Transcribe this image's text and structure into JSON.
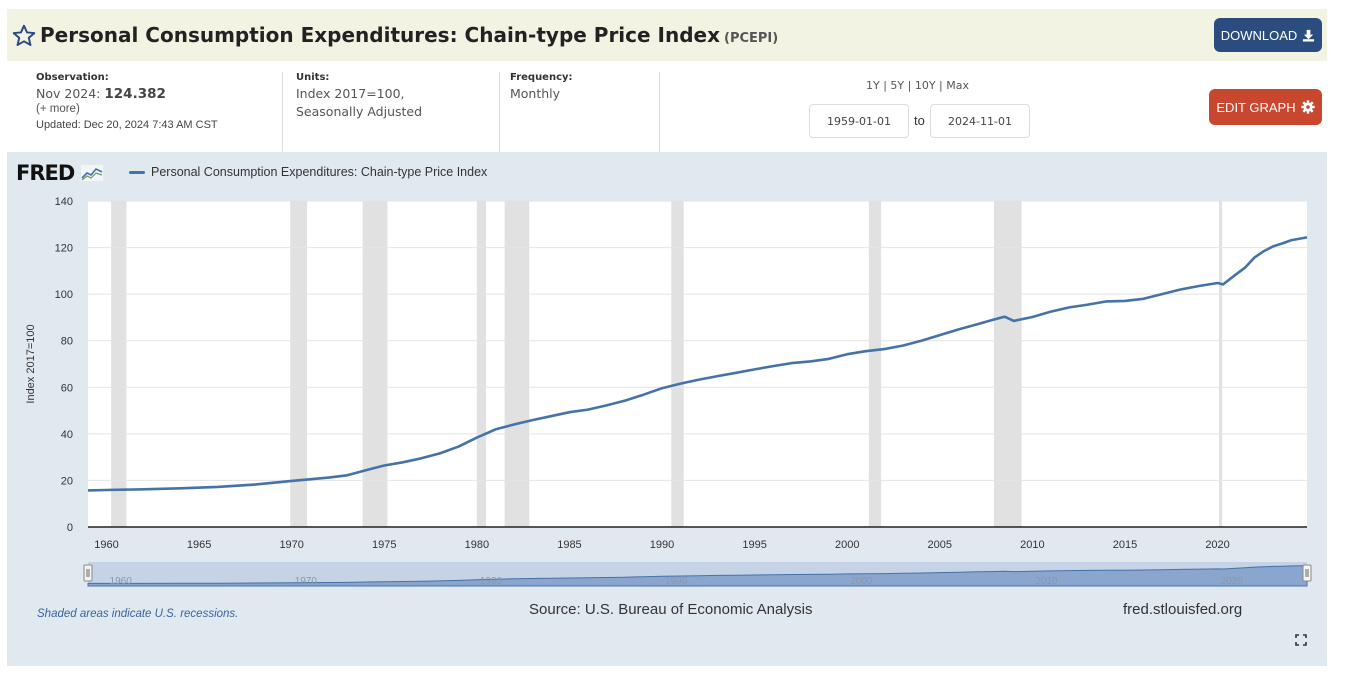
{
  "header": {
    "title": "Personal Consumption Expenditures: Chain-type Price Index",
    "series_id": "(PCEPI)",
    "download_label": "DOWNLOAD"
  },
  "meta": {
    "observation_label": "Observation:",
    "observation_date": "Nov 2024:",
    "observation_value": "124.382",
    "more": "(+ more)",
    "updated_label": "Updated:",
    "updated_value": "Dec 20, 2024 7:43 AM CST",
    "units_label": "Units:",
    "units_line1": "Index 2017=100,",
    "units_line2": "Seasonally Adjusted",
    "frequency_label": "Frequency:",
    "frequency_value": "Monthly"
  },
  "controls": {
    "range_1y": "1Y",
    "range_5y": "5Y",
    "range_10y": "10Y",
    "range_max": "Max",
    "start_date": "1959-01-01",
    "to_label": "to",
    "end_date": "2024-11-01",
    "edit_label": "EDIT GRAPH"
  },
  "graph": {
    "logo": "FRED",
    "note": "Shaded areas indicate U.S. recessions.",
    "source": "Source: U.S. Bureau of Economic Analysis",
    "site": "fred.stlouisfed.org"
  },
  "colors": {
    "series": "#4572a7",
    "recession": "#e1e1e1",
    "download_button": "#2b4c7e",
    "edit_button": "#c9472e"
  },
  "chart_data": {
    "type": "line",
    "title": "Personal Consumption Expenditures: Chain-type Price Index",
    "ylabel": "Index 2017=100",
    "xlabel": "",
    "xlim": [
      1959.0,
      2024.83
    ],
    "ylim": [
      0,
      140
    ],
    "y_ticks": [
      0,
      20,
      40,
      60,
      80,
      100,
      120,
      140
    ],
    "x_ticks": [
      1960,
      1965,
      1970,
      1975,
      1980,
      1985,
      1990,
      1995,
      2000,
      2005,
      2010,
      2015,
      2020
    ],
    "recessions": [
      [
        1960.25,
        1961.08
      ],
      [
        1969.92,
        1970.83
      ],
      [
        1973.83,
        1975.17
      ],
      [
        1980.0,
        1980.5
      ],
      [
        1981.5,
        1982.83
      ],
      [
        1990.5,
        1991.17
      ],
      [
        2001.17,
        2001.83
      ],
      [
        2007.92,
        2009.42
      ],
      [
        2020.08,
        2020.25
      ]
    ],
    "series": [
      {
        "name": "Personal Consumption Expenditures: Chain-type Price Index",
        "x": [
          1959,
          1960,
          1962,
          1964,
          1966,
          1968,
          1970,
          1972,
          1973,
          1974,
          1975,
          1976,
          1977,
          1978,
          1979,
          1980,
          1981,
          1982,
          1983,
          1984,
          1985,
          1986,
          1987,
          1988,
          1989,
          1990,
          1991,
          1992,
          1993,
          1994,
          1995,
          1996,
          1997,
          1998,
          1999,
          2000,
          2001,
          2002,
          2003,
          2004,
          2005,
          2006,
          2007,
          2008,
          2008.5,
          2009,
          2010,
          2011,
          2012,
          2013,
          2014,
          2015,
          2016,
          2017,
          2018,
          2019,
          2020,
          2020.3,
          2021,
          2021.5,
          2022,
          2022.5,
          2023,
          2023.5,
          2024,
          2024.83
        ],
        "values": [
          15.7,
          15.9,
          16.2,
          16.6,
          17.2,
          18.2,
          19.8,
          21.2,
          22.2,
          24.4,
          26.4,
          27.8,
          29.5,
          31.6,
          34.5,
          38.4,
          41.9,
          44.0,
          45.9,
          47.6,
          49.3,
          50.4,
          52.2,
          54.3,
          56.8,
          59.6,
          61.6,
          63.3,
          64.8,
          66.2,
          67.7,
          69.1,
          70.4,
          71.1,
          72.2,
          74.2,
          75.5,
          76.4,
          77.9,
          80.0,
          82.4,
          84.8,
          87.0,
          89.3,
          90.3,
          88.5,
          90.2,
          92.5,
          94.3,
          95.5,
          96.9,
          97.1,
          98.0,
          100.0,
          102.0,
          103.5,
          104.8,
          104.2,
          108.5,
          111.5,
          115.8,
          118.5,
          120.5,
          121.8,
          123.2,
          124.382
        ]
      }
    ]
  }
}
